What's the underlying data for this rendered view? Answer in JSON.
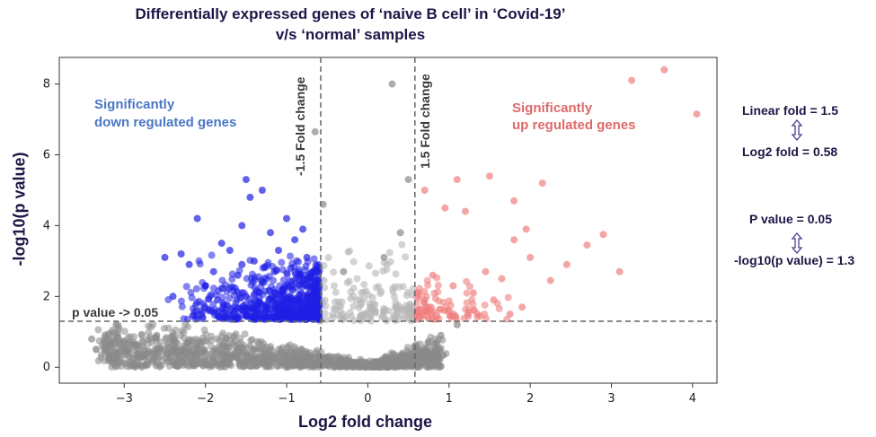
{
  "chart_data": {
    "type": "scatter",
    "title": "Differentially expressed genes of ‘naive B cell’ in ‘Covid-19’ v/s ‘normal’ samples",
    "title_lines": [
      "Differentially expressed genes of ‘naive B cell’ in ‘Covid-19’",
      "v/s ‘normal’ samples"
    ],
    "xlabel": "Log2 fold change",
    "ylabel": "-log10(p value)",
    "xlim": [
      -3.8,
      4.3
    ],
    "ylim": [
      -0.45,
      8.75
    ],
    "x_ticks": [
      -3,
      -2,
      -1,
      0,
      1,
      2,
      3,
      4
    ],
    "x_tick_labels": [
      "−3",
      "−2",
      "−1",
      "0",
      "1",
      "2",
      "3",
      "4"
    ],
    "y_ticks": [
      0,
      2,
      4,
      6,
      8
    ],
    "y_tick_labels": [
      "0",
      "2",
      "4",
      "6",
      "8"
    ],
    "grid": false,
    "thresholds": {
      "fold_change_lines": [
        -0.58,
        0.58
      ],
      "pvalue_line": 1.3,
      "fold_line_labels": [
        "-1.5 Fold change",
        "1.5 Fold change"
      ],
      "pvalue_line_label": "p value -> 0.05"
    },
    "annotations": {
      "down": [
        "Significantly",
        "down regulated genes"
      ],
      "up": [
        "Significantly",
        "up regulated genes"
      ]
    },
    "series": [
      {
        "group": "down",
        "color": "#1f1fe6",
        "points": [
          [
            -2.1,
            4.2
          ],
          [
            -1.5,
            5.3
          ],
          [
            -1.45,
            4.8
          ],
          [
            -1.3,
            5.0
          ],
          [
            -1.55,
            4.0
          ],
          [
            -1.8,
            3.5
          ],
          [
            -2.3,
            3.2
          ],
          [
            -2.5,
            3.1
          ],
          [
            -2.2,
            2.9
          ],
          [
            -1.9,
            2.7
          ],
          [
            -1.7,
            3.3
          ],
          [
            -1.2,
            3.8
          ],
          [
            -1.0,
            4.2
          ],
          [
            -0.9,
            3.6
          ],
          [
            -0.8,
            3.9
          ],
          [
            -1.1,
            3.3
          ],
          [
            -1.4,
            3.0
          ],
          [
            -1.6,
            2.6
          ],
          [
            -2.0,
            2.3
          ],
          [
            -2.4,
            2.0
          ],
          [
            -1.85,
            1.9
          ],
          [
            -1.3,
            2.4
          ],
          [
            -0.95,
            2.8
          ],
          [
            -0.75,
            3.1
          ],
          [
            -0.7,
            2.5
          ],
          [
            -1.05,
            2.2
          ],
          [
            -1.5,
            2.0
          ],
          [
            -1.25,
            1.7
          ],
          [
            -0.85,
            1.9
          ],
          [
            -0.65,
            1.6
          ],
          [
            -2.0,
            2.3
          ],
          [
            -1.55,
            2.9
          ],
          [
            -1.15,
            2.7
          ]
        ]
      },
      {
        "group": "up",
        "color": "#f08080",
        "points": [
          [
            3.65,
            8.4
          ],
          [
            3.25,
            8.1
          ],
          [
            4.05,
            7.15
          ],
          [
            1.5,
            5.4
          ],
          [
            2.15,
            5.2
          ],
          [
            0.7,
            5.0
          ],
          [
            1.1,
            5.3
          ],
          [
            1.8,
            4.7
          ],
          [
            0.95,
            4.5
          ],
          [
            1.2,
            4.4
          ],
          [
            1.95,
            3.9
          ],
          [
            2.9,
            3.75
          ],
          [
            2.7,
            3.45
          ],
          [
            1.8,
            3.6
          ],
          [
            2.0,
            3.1
          ],
          [
            2.45,
            2.9
          ],
          [
            1.45,
            2.7
          ],
          [
            1.65,
            2.5
          ],
          [
            2.25,
            2.45
          ],
          [
            3.1,
            2.7
          ],
          [
            0.8,
            2.6
          ],
          [
            1.05,
            2.3
          ],
          [
            1.3,
            2.1
          ],
          [
            1.55,
            1.9
          ],
          [
            1.9,
            1.7
          ],
          [
            0.7,
            1.9
          ],
          [
            1.0,
            1.6
          ],
          [
            1.35,
            1.5
          ],
          [
            1.75,
            1.5
          ],
          [
            0.85,
            1.45
          ]
        ]
      },
      {
        "group": "not significant",
        "color": "#8a8a8a",
        "points": [
          [
            0.3,
            8.0
          ],
          [
            -0.65,
            6.65
          ],
          [
            0.5,
            5.3
          ],
          [
            -0.55,
            4.6
          ],
          [
            0.4,
            3.8
          ],
          [
            0.2,
            3.1
          ],
          [
            -0.3,
            2.7
          ],
          [
            -3.4,
            0.8
          ],
          [
            -3.1,
            1.2
          ],
          [
            -2.6,
            0.9
          ],
          [
            -2.2,
            0.7
          ],
          [
            -1.8,
            0.6
          ],
          [
            -1.4,
            0.5
          ],
          [
            -1.0,
            0.4
          ],
          [
            -0.6,
            0.3
          ],
          [
            -0.2,
            0.15
          ],
          [
            0.2,
            0.2
          ],
          [
            0.6,
            0.5
          ],
          [
            0.9,
            0.9
          ],
          [
            1.1,
            1.2
          ]
        ]
      }
    ]
  },
  "side_notes": {
    "linear_fold": "Linear fold = 1.5",
    "log2_fold": "Log2 fold  = 0.58",
    "p_value": "P value = 0.05",
    "neg_log_p": "-log10(p value) = 1.3"
  },
  "colors": {
    "down": "#1f1fe6",
    "up": "#f08080",
    "nonsig": "#8a8a8a",
    "title": "#1c1746",
    "arrow": "#4b3f8f"
  }
}
